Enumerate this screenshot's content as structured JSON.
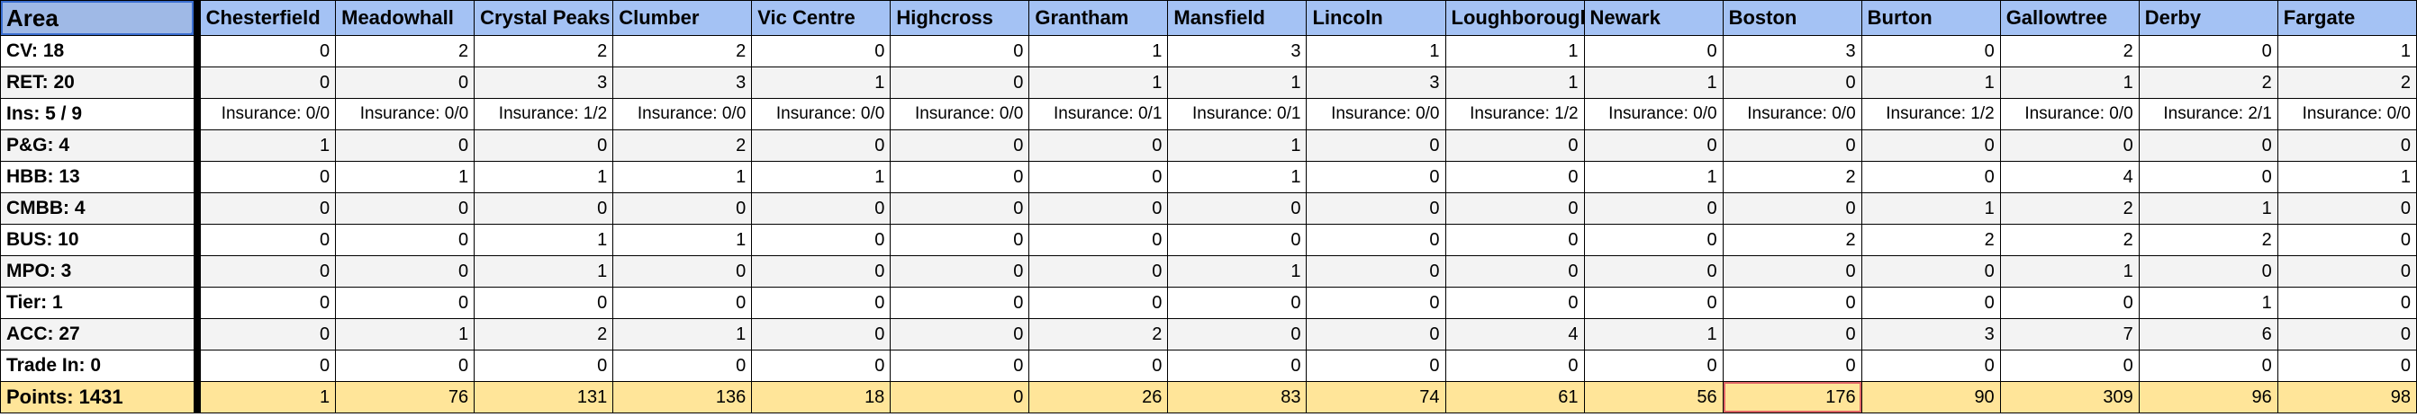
{
  "sheet": {
    "corner_label": "Area",
    "columns": [
      "Chesterfield",
      "Meadowhall",
      "Crystal Peaks",
      "Clumber",
      "Vic Centre",
      "Highcross",
      "Grantham",
      "Mansfield",
      "Lincoln",
      "Loughborough",
      "Newark",
      "Boston",
      "Burton",
      "Gallowtree",
      "Derby",
      "Fargate"
    ],
    "rows": [
      {
        "label": "CV: 18",
        "type": "num",
        "values": [
          "0",
          "2",
          "2",
          "2",
          "0",
          "0",
          "1",
          "3",
          "1",
          "1",
          "0",
          "3",
          "0",
          "2",
          "0",
          "1"
        ]
      },
      {
        "label": "RET: 20",
        "type": "num",
        "values": [
          "0",
          "0",
          "3",
          "3",
          "1",
          "0",
          "1",
          "1",
          "3",
          "1",
          "1",
          "0",
          "1",
          "1",
          "2",
          "2"
        ]
      },
      {
        "label": "Ins: 5 / 9",
        "type": "ins",
        "values": [
          "Insurance: 0/0",
          "Insurance: 0/0",
          "Insurance: 1/2",
          "Insurance: 0/0",
          "Insurance: 0/0",
          "Insurance: 0/0",
          "Insurance: 0/1",
          "Insurance: 0/1",
          "Insurance: 0/0",
          "Insurance: 1/2",
          "Insurance: 0/0",
          "Insurance: 0/0",
          "Insurance: 1/2",
          "Insurance: 0/0",
          "Insurance: 2/1",
          "Insurance: 0/0"
        ]
      },
      {
        "label": "P&G: 4",
        "type": "num",
        "values": [
          "1",
          "0",
          "0",
          "2",
          "0",
          "0",
          "0",
          "1",
          "0",
          "0",
          "0",
          "0",
          "0",
          "0",
          "0",
          "0"
        ]
      },
      {
        "label": "HBB: 13",
        "type": "num",
        "values": [
          "0",
          "1",
          "1",
          "1",
          "1",
          "0",
          "0",
          "1",
          "0",
          "0",
          "1",
          "2",
          "0",
          "4",
          "0",
          "1"
        ]
      },
      {
        "label": "CMBB: 4",
        "type": "num",
        "values": [
          "0",
          "0",
          "0",
          "0",
          "0",
          "0",
          "0",
          "0",
          "0",
          "0",
          "0",
          "0",
          "1",
          "2",
          "1",
          "0"
        ]
      },
      {
        "label": "BUS: 10",
        "type": "num",
        "values": [
          "0",
          "0",
          "1",
          "1",
          "0",
          "0",
          "0",
          "0",
          "0",
          "0",
          "0",
          "2",
          "2",
          "2",
          "2",
          "0"
        ]
      },
      {
        "label": "MPO: 3",
        "type": "num",
        "values": [
          "0",
          "0",
          "1",
          "0",
          "0",
          "0",
          "0",
          "1",
          "0",
          "0",
          "0",
          "0",
          "0",
          "1",
          "0",
          "0"
        ]
      },
      {
        "label": "Tier: 1",
        "type": "num",
        "values": [
          "0",
          "0",
          "0",
          "0",
          "0",
          "0",
          "0",
          "0",
          "0",
          "0",
          "0",
          "0",
          "0",
          "0",
          "1",
          "0"
        ]
      },
      {
        "label": "ACC: 27",
        "type": "num",
        "values": [
          "0",
          "1",
          "2",
          "1",
          "0",
          "0",
          "2",
          "0",
          "0",
          "4",
          "1",
          "0",
          "3",
          "7",
          "6",
          "0"
        ]
      },
      {
        "label": "Trade In: 0",
        "type": "num",
        "values": [
          "0",
          "0",
          "0",
          "0",
          "0",
          "0",
          "0",
          "0",
          "0",
          "0",
          "0",
          "0",
          "0",
          "0",
          "0",
          "0"
        ]
      }
    ],
    "points": {
      "label": "Points: 1431",
      "values": [
        "1",
        "76",
        "131",
        "136",
        "18",
        "0",
        "26",
        "83",
        "74",
        "61",
        "56",
        "176",
        "90",
        "309",
        "96",
        "98"
      ]
    },
    "highlight_color": "#e06666",
    "header_color": "#a4c2f4",
    "points_color": "#ffe599"
  }
}
